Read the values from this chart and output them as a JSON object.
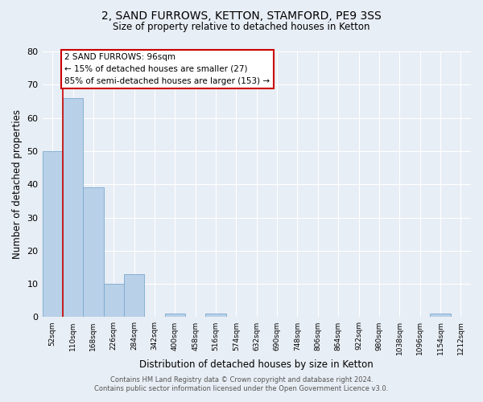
{
  "title": "2, SAND FURROWS, KETTON, STAMFORD, PE9 3SS",
  "subtitle": "Size of property relative to detached houses in Ketton",
  "xlabel": "Distribution of detached houses by size in Ketton",
  "ylabel": "Number of detached properties",
  "categories": [
    "52sqm",
    "110sqm",
    "168sqm",
    "226sqm",
    "284sqm",
    "342sqm",
    "400sqm",
    "458sqm",
    "516sqm",
    "574sqm",
    "632sqm",
    "690sqm",
    "748sqm",
    "806sqm",
    "864sqm",
    "922sqm",
    "980sqm",
    "1038sqm",
    "1096sqm",
    "1154sqm",
    "1212sqm"
  ],
  "values": [
    50,
    66,
    39,
    10,
    13,
    0,
    1,
    0,
    1,
    0,
    0,
    0,
    0,
    0,
    0,
    0,
    0,
    0,
    0,
    1,
    0
  ],
  "bar_color": "#b8d0e8",
  "bar_edge_color": "#7aaacf",
  "highlight_line_color": "#cc0000",
  "annotation_title": "2 SAND FURROWS: 96sqm",
  "annotation_line1": "← 15% of detached houses are smaller (27)",
  "annotation_line2": "85% of semi-detached houses are larger (153) →",
  "annotation_box_color": "#cc0000",
  "ylim": [
    0,
    80
  ],
  "yticks": [
    0,
    10,
    20,
    30,
    40,
    50,
    60,
    70,
    80
  ],
  "background_color": "#e8eef5",
  "plot_background": "#e8eef5",
  "grid_color": "#ffffff",
  "footer_line1": "Contains HM Land Registry data © Crown copyright and database right 2024.",
  "footer_line2": "Contains public sector information licensed under the Open Government Licence v3.0."
}
